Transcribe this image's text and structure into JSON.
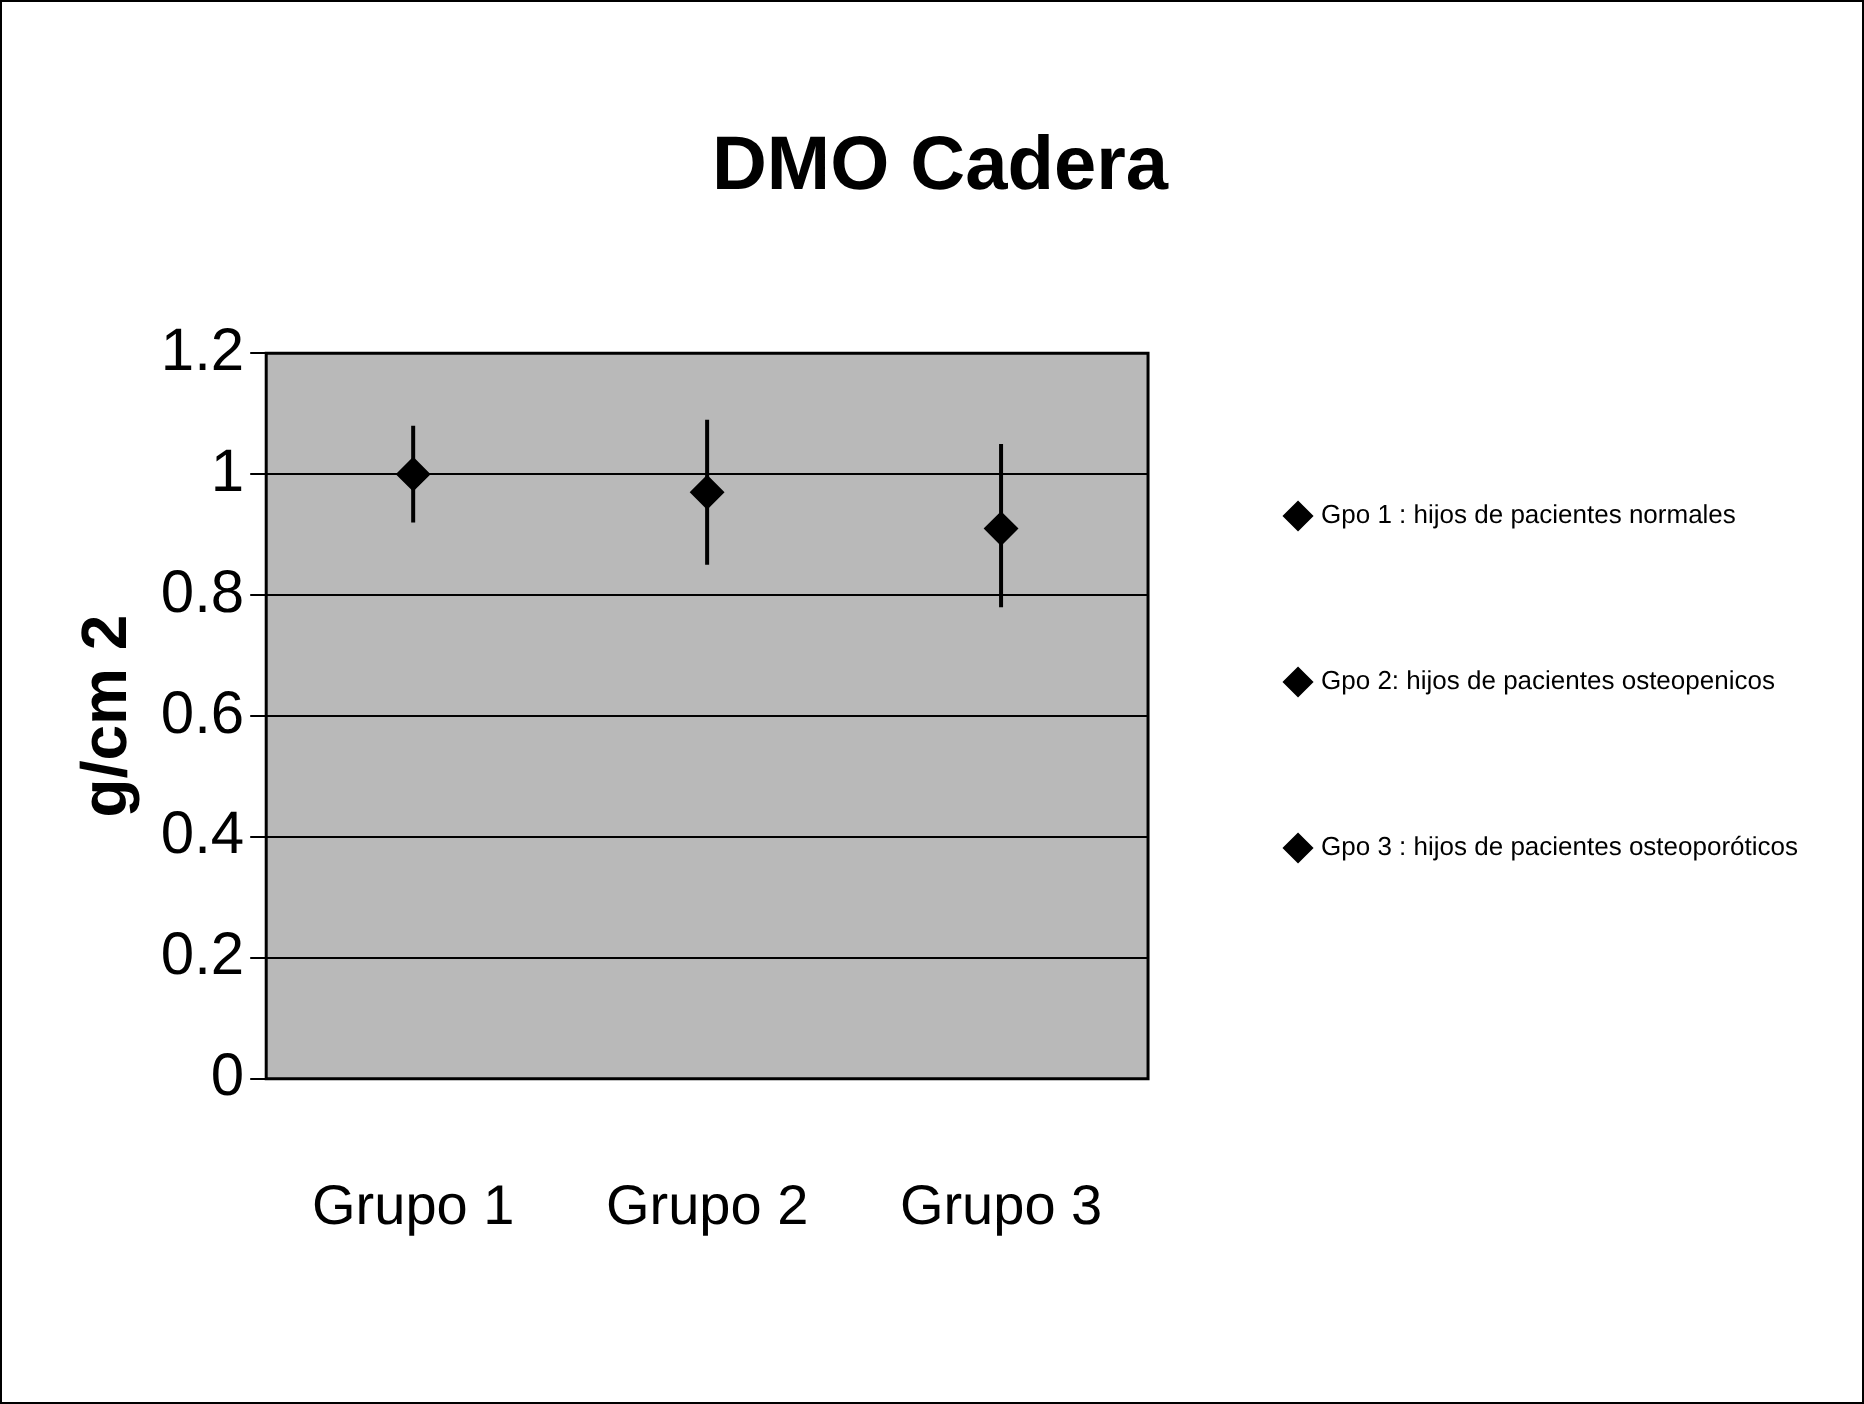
{
  "chart_data": {
    "type": "scatter",
    "title": "DMO Cadera",
    "ylabel": "g/cm 2",
    "categories": [
      "Grupo 1",
      "Grupo 2",
      "Grupo 3"
    ],
    "ylim": [
      0,
      1.2
    ],
    "yticks": [
      0,
      0.2,
      0.4,
      0.6,
      0.8,
      1,
      1.2
    ],
    "grid": "y",
    "legend": "right",
    "marker": "diamond",
    "series": [
      {
        "name": "Gpo 1 : hijos de pacientes normales",
        "color": "#000000",
        "x": [
          "Grupo 1"
        ],
        "values": [
          1.0
        ],
        "errors": [
          [
            0.92,
            1.08
          ]
        ]
      },
      {
        "name": "Gpo 2: hijos de pacientes osteopenicos",
        "color": "#000000",
        "x": [
          "Grupo 2"
        ],
        "values": [
          0.97
        ],
        "errors": [
          [
            0.85,
            1.09
          ]
        ]
      },
      {
        "name": "Gpo 3 : hijos de pacientes osteoporóticos",
        "color": "#000000",
        "x": [
          "Grupo 3"
        ],
        "values": [
          0.91
        ],
        "errors": [
          [
            0.78,
            1.05
          ]
        ]
      }
    ]
  }
}
